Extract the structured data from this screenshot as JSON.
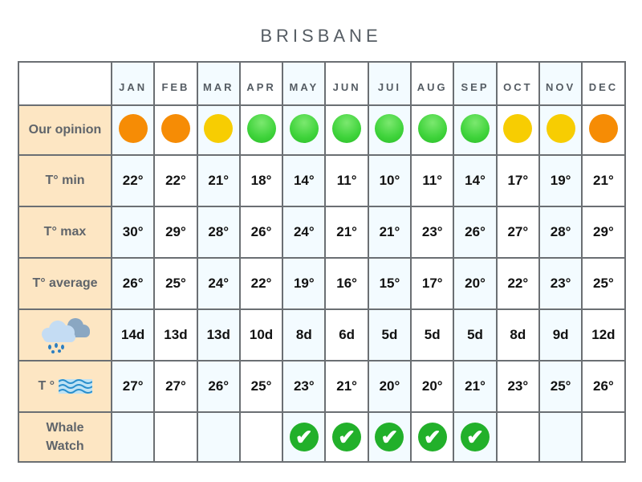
{
  "title": "BRISBANE",
  "months": [
    "JAN",
    "FEB",
    "MAR",
    "APR",
    "MAY",
    "JUN",
    "JUI",
    "AUG",
    "SEP",
    "OCT",
    "NOV",
    "DEC"
  ],
  "colors": {
    "orange": "#f68c05",
    "yellow": "#f7cd02",
    "green": "#3ed33a",
    "check": "#22b02a",
    "label_bg": "#fde6c3",
    "alt_col": "#f3fbff"
  },
  "rows": {
    "opinion": {
      "label": "Our opinion",
      "values": [
        "orange",
        "orange",
        "yellow",
        "green",
        "green",
        "green",
        "green",
        "green",
        "green",
        "yellow",
        "yellow",
        "orange"
      ]
    },
    "tmin": {
      "label": "T° min",
      "values": [
        "22°",
        "22°",
        "21°",
        "18°",
        "14°",
        "11°",
        "10°",
        "11°",
        "14°",
        "17°",
        "19°",
        "21°"
      ]
    },
    "tmax": {
      "label": "T° max",
      "values": [
        "30°",
        "29°",
        "28°",
        "26°",
        "24°",
        "21°",
        "21°",
        "23°",
        "26°",
        "27°",
        "28°",
        "29°"
      ]
    },
    "tavg": {
      "label": "T° average",
      "values": [
        "26°",
        "25°",
        "24°",
        "22°",
        "19°",
        "16°",
        "15°",
        "17°",
        "20°",
        "22°",
        "23°",
        "25°"
      ]
    },
    "rain": {
      "icon": "rain-cloud-icon",
      "values": [
        "14d",
        "13d",
        "13d",
        "10d",
        "8d",
        "6d",
        "5d",
        "5d",
        "5d",
        "8d",
        "9d",
        "12d"
      ]
    },
    "sea": {
      "label": "T °",
      "icon": "waves-icon",
      "values": [
        "27°",
        "27°",
        "26°",
        "25°",
        "23°",
        "21°",
        "20°",
        "20°",
        "21°",
        "23°",
        "25°",
        "26°"
      ]
    },
    "whale": {
      "label": "Whale Watch",
      "values": [
        false,
        false,
        false,
        false,
        true,
        true,
        true,
        true,
        true,
        false,
        false,
        false
      ]
    }
  }
}
